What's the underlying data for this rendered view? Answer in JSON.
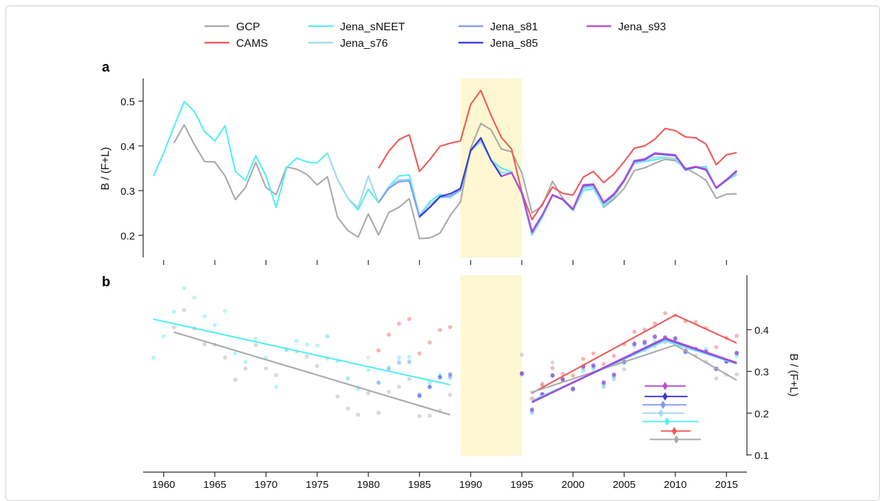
{
  "chart_data": [
    {
      "panel": "a",
      "type": "line",
      "ylabel": "B / (F+L)",
      "ylim": [
        0.15,
        0.55
      ],
      "yticks": [
        0.2,
        0.3,
        0.4,
        0.5
      ],
      "ytick_labels": [
        "0.2",
        "0.3",
        "0.4",
        "0.5"
      ],
      "shaded_region": [
        1989,
        1995
      ],
      "series": [
        {
          "name": "GCP",
          "color": "#aaaaaa",
          "x": [
            1961,
            1962,
            1963,
            1964,
            1965,
            1966,
            1967,
            1968,
            1969,
            1970,
            1971,
            1972,
            1973,
            1974,
            1975,
            1976,
            1977,
            1978,
            1979,
            1980,
            1981,
            1982,
            1983,
            1984,
            1985,
            1986,
            1987,
            1988,
            1989,
            1990,
            1991,
            1992,
            1993,
            1994,
            1995,
            1996,
            1997,
            1998,
            1999,
            2000,
            2001,
            2002,
            2003,
            2004,
            2005,
            2006,
            2007,
            2008,
            2009,
            2010,
            2011,
            2012,
            2013,
            2014,
            2015,
            2016
          ],
          "values": [
            0.406,
            0.447,
            0.403,
            0.365,
            0.364,
            0.333,
            0.28,
            0.307,
            0.363,
            0.307,
            0.291,
            0.353,
            0.348,
            0.336,
            0.313,
            0.331,
            0.24,
            0.211,
            0.196,
            0.248,
            0.201,
            0.251,
            0.263,
            0.282,
            0.193,
            0.194,
            0.205,
            0.244,
            0.275,
            0.395,
            0.45,
            0.436,
            0.393,
            0.387,
            0.34,
            0.25,
            0.266,
            0.321,
            0.283,
            0.258,
            0.307,
            0.309,
            0.263,
            0.281,
            0.305,
            0.345,
            0.351,
            0.361,
            0.37,
            0.367,
            0.35,
            0.338,
            0.323,
            0.283,
            0.292,
            0.293
          ]
        },
        {
          "name": "CAMS",
          "color": "#ef5a5a",
          "x": [
            1981,
            1982,
            1983,
            1984,
            1985,
            1986,
            1987,
            1988,
            1989,
            1990,
            1991,
            1992,
            1993,
            1994,
            1995,
            1996,
            1997,
            1998,
            1999,
            2000,
            2001,
            2002,
            2003,
            2004,
            2005,
            2006,
            2007,
            2008,
            2009,
            2010,
            2011,
            2012,
            2013,
            2014,
            2015,
            2016
          ],
          "values": [
            0.35,
            0.388,
            0.414,
            0.425,
            0.343,
            0.369,
            0.399,
            0.406,
            0.411,
            0.493,
            0.524,
            0.468,
            0.419,
            0.393,
            0.296,
            0.235,
            0.27,
            0.308,
            0.294,
            0.29,
            0.33,
            0.343,
            0.318,
            0.337,
            0.365,
            0.395,
            0.4,
            0.415,
            0.439,
            0.434,
            0.42,
            0.418,
            0.404,
            0.358,
            0.38,
            0.385
          ]
        },
        {
          "name": "Jena_sNEET",
          "color": "#55eef2",
          "x": [
            1959,
            1960,
            1961,
            1962,
            1963,
            1964,
            1965,
            1966,
            1967,
            1968,
            1969,
            1970,
            1971,
            1972,
            1973,
            1974,
            1975,
            1976,
            1977,
            1978,
            1979,
            1980,
            1981,
            1982,
            1983,
            1984,
            1985,
            1986,
            1987,
            1988,
            1989,
            1990,
            1991,
            1992,
            1993,
            1994,
            1995,
            1996,
            1997,
            1998,
            1999,
            2000,
            2001,
            2002,
            2003,
            2004,
            2005,
            2006,
            2007,
            2008,
            2009,
            2010,
            2011,
            2012,
            2013,
            2014,
            2015,
            2016
          ],
          "values": [
            0.333,
            0.384,
            0.443,
            0.499,
            0.477,
            0.432,
            0.411,
            0.445,
            0.343,
            0.323,
            0.378,
            0.333,
            0.263,
            0.351,
            0.373,
            0.364,
            0.362,
            0.384,
            0.325,
            0.283,
            0.257,
            0.303,
            0.273,
            0.309,
            0.333,
            0.335,
            0.245,
            0.275,
            0.292,
            0.284,
            0.3,
            0.39,
            0.41,
            0.368,
            0.35,
            0.342,
            0.292,
            0.2,
            0.24,
            0.29,
            0.28,
            0.255,
            0.3,
            0.305,
            0.265,
            0.286,
            0.32,
            0.362,
            0.365,
            0.369,
            0.374,
            0.371,
            0.345,
            0.352,
            0.354,
            0.305,
            0.323,
            0.336
          ]
        },
        {
          "name": "Jena_s76",
          "color": "#a6d8ef",
          "x": [
            1976,
            1977,
            1978,
            1979,
            1980,
            1981,
            1982,
            1983,
            1984,
            1985,
            1986,
            1987,
            1988,
            1989,
            1990,
            1991,
            1992,
            1993,
            1994,
            1995,
            1996,
            1997,
            1998,
            1999,
            2000,
            2001,
            2002,
            2003,
            2004,
            2005,
            2006,
            2007,
            2008,
            2009,
            2010,
            2011,
            2012,
            2013,
            2014,
            2015,
            2016
          ],
          "values": [
            0.384,
            0.325,
            0.283,
            0.262,
            0.333,
            0.273,
            0.309,
            0.324,
            0.325,
            0.245,
            0.27,
            0.285,
            0.285,
            0.3,
            0.39,
            0.41,
            0.368,
            0.34,
            0.34,
            0.292,
            0.2,
            0.245,
            0.29,
            0.28,
            0.255,
            0.305,
            0.31,
            0.268,
            0.286,
            0.32,
            0.36,
            0.365,
            0.375,
            0.375,
            0.372,
            0.345,
            0.352,
            0.35,
            0.305,
            0.323,
            0.34
          ]
        },
        {
          "name": "Jena_s81",
          "color": "#7f9ef0",
          "x": [
            1981,
            1982,
            1983,
            1984,
            1985,
            1986,
            1987,
            1988,
            1989,
            1990,
            1991,
            1992,
            1993,
            1994,
            1995,
            1996,
            1997,
            1998,
            1999,
            2000,
            2001,
            2002,
            2003,
            2004,
            2005,
            2006,
            2007,
            2008,
            2009,
            2010,
            2011,
            2012,
            2013,
            2014,
            2015,
            2016
          ],
          "values": [
            0.273,
            0.305,
            0.32,
            0.322,
            0.24,
            0.262,
            0.285,
            0.288,
            0.302,
            0.388,
            0.415,
            0.368,
            0.332,
            0.34,
            0.295,
            0.205,
            0.245,
            0.29,
            0.28,
            0.258,
            0.31,
            0.312,
            0.272,
            0.29,
            0.322,
            0.365,
            0.368,
            0.382,
            0.38,
            0.378,
            0.346,
            0.353,
            0.346,
            0.306,
            0.323,
            0.343
          ]
        },
        {
          "name": "Jena_s85",
          "color": "#3a3ad6",
          "x": [
            1985,
            1986,
            1987,
            1988,
            1989,
            1990,
            1991,
            1992,
            1993,
            1994,
            1995,
            1996,
            1997,
            1998,
            1999,
            2000,
            2001,
            2002,
            2003,
            2004,
            2005,
            2006,
            2007,
            2008,
            2009,
            2010,
            2011,
            2012,
            2013,
            2014,
            2015,
            2016
          ],
          "values": [
            0.242,
            0.263,
            0.287,
            0.293,
            0.305,
            0.39,
            0.418,
            0.368,
            0.332,
            0.34,
            0.295,
            0.208,
            0.245,
            0.29,
            0.28,
            0.258,
            0.312,
            0.314,
            0.273,
            0.292,
            0.323,
            0.366,
            0.37,
            0.383,
            0.381,
            0.379,
            0.348,
            0.353,
            0.347,
            0.306,
            0.324,
            0.344
          ]
        },
        {
          "name": "Jena_s93",
          "color": "#b44fd9",
          "x": [
            1993,
            1994,
            1995,
            1996,
            1997,
            1998,
            1999,
            2000,
            2001,
            2002,
            2003,
            2004,
            2005,
            2006,
            2007,
            2008,
            2009,
            2010,
            2011,
            2012,
            2013,
            2014,
            2015,
            2016
          ],
          "values": [
            0.332,
            0.34,
            0.294,
            0.209,
            0.246,
            0.291,
            0.281,
            0.259,
            0.313,
            0.315,
            0.274,
            0.293,
            0.324,
            0.367,
            0.371,
            0.384,
            0.382,
            0.38,
            0.349,
            0.354,
            0.348,
            0.307,
            0.325,
            0.345
          ]
        }
      ]
    },
    {
      "panel": "b",
      "type": "scatter",
      "ylabel": "B / (F+L)",
      "ylim": [
        0.1,
        0.5
      ],
      "yticks": [
        0.1,
        0.2,
        0.3,
        0.4
      ],
      "ytick_labels": [
        "0.1",
        "0.2",
        "0.3",
        "0.4"
      ],
      "xlim": [
        1958,
        2017
      ],
      "xticks": [
        1960,
        1965,
        1970,
        1975,
        1980,
        1985,
        1990,
        1995,
        2000,
        2005,
        2010,
        2015
      ],
      "xtick_labels": [
        "1960",
        "1965",
        "1970",
        "1975",
        "1980",
        "1985",
        "1990",
        "1995",
        "2000",
        "2005",
        "2010",
        "2015"
      ],
      "shaded_region": [
        1989,
        1995
      ],
      "note": "Scatter points are the same annual values as panel a, drawn faded.",
      "trend_lines": [
        {
          "series": "Jena_sNEET",
          "color": "#55eef2",
          "x": [
            1959,
            1988
          ],
          "values": [
            0.425,
            0.268
          ]
        },
        {
          "series": "GCP",
          "color": "#aaaaaa",
          "x": [
            1961,
            1988
          ],
          "values": [
            0.394,
            0.196
          ]
        },
        {
          "series": "CAMS",
          "color": "#ef5a5a",
          "x": [
            1996,
            2010,
            2016
          ],
          "values": [
            0.248,
            0.435,
            0.368
          ]
        },
        {
          "series": "GCP",
          "color": "#aaaaaa",
          "x": [
            1996,
            2010,
            2016
          ],
          "values": [
            0.25,
            0.363,
            0.279
          ]
        },
        {
          "series": "Jena_sNEET",
          "color": "#55eef2",
          "x": [
            1996,
            2009,
            2016
          ],
          "values": [
            0.23,
            0.373,
            0.318
          ]
        },
        {
          "series": "Jena_s76",
          "color": "#a6d8ef",
          "x": [
            1996,
            2009,
            2016
          ],
          "values": [
            0.228,
            0.375,
            0.318
          ]
        },
        {
          "series": "Jena_s81",
          "color": "#7f9ef0",
          "x": [
            1996,
            2009,
            2016
          ],
          "values": [
            0.227,
            0.377,
            0.319
          ]
        },
        {
          "series": "Jena_s85",
          "color": "#3a3ad6",
          "x": [
            1996,
            2009,
            2016
          ],
          "values": [
            0.226,
            0.379,
            0.32
          ]
        },
        {
          "series": "Jena_s93",
          "color": "#b44fd9",
          "x": [
            1996,
            2009,
            2016
          ],
          "values": [
            0.227,
            0.38,
            0.321
          ]
        }
      ],
      "breakpoint_estimates": [
        {
          "series": "Jena_s93",
          "color": "#b44fd9",
          "center": 2009.0,
          "range": [
            2007.0,
            2011.0
          ],
          "y": 0.265
        },
        {
          "series": "Jena_s85",
          "color": "#3a3ad6",
          "center": 2009.0,
          "range": [
            2007.0,
            2011.2
          ],
          "y": 0.24
        },
        {
          "series": "Jena_s81",
          "color": "#7f9ef0",
          "center": 2008.8,
          "range": [
            2006.8,
            2011.1
          ],
          "y": 0.22
        },
        {
          "series": "Jena_s76",
          "color": "#a6d8ef",
          "center": 2008.6,
          "range": [
            2006.8,
            2010.9
          ],
          "y": 0.2
        },
        {
          "series": "Jena_sNEET",
          "color": "#55eef2",
          "center": 2009.2,
          "range": [
            2006.8,
            2012.3
          ],
          "y": 0.18
        },
        {
          "series": "CAMS",
          "color": "#ef5a5a",
          "center": 2009.9,
          "range": [
            2008.6,
            2011.5
          ],
          "y": 0.157
        },
        {
          "series": "GCP",
          "color": "#aaaaaa",
          "center": 2010.1,
          "range": [
            2007.5,
            2012.5
          ],
          "y": 0.137
        }
      ]
    }
  ],
  "legend": {
    "placement": "top",
    "entries": [
      {
        "name": "GCP",
        "color": "#aaaaaa"
      },
      {
        "name": "CAMS",
        "color": "#ef5a5a"
      },
      {
        "name": "Jena_sNEET",
        "color": "#55eef2"
      },
      {
        "name": "Jena_s76",
        "color": "#a6d8ef"
      },
      {
        "name": "Jena_s81",
        "color": "#7f9ef0"
      },
      {
        "name": "Jena_s85",
        "color": "#3a3ad6"
      },
      {
        "name": "Jena_s93",
        "color": "#b44fd9"
      }
    ]
  },
  "shading_color": "#fdf7d2"
}
